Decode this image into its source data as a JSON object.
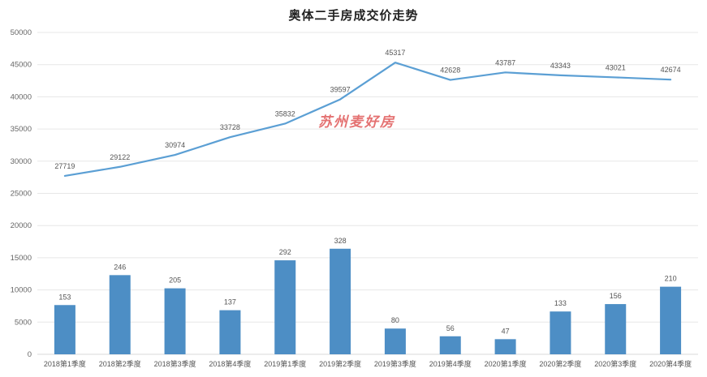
{
  "chart_data": {
    "type": "combo",
    "title": "奥体二手房成交价走势",
    "categories": [
      "2018第1季度",
      "2018第2季度",
      "2018第3季度",
      "2018第4季度",
      "2019第1季度",
      "2019第2季度",
      "2019第3季度",
      "2019第4季度",
      "2020第1季度",
      "2020第2季度",
      "2020第3季度",
      "2020第4季度"
    ],
    "series": [
      {
        "type": "line",
        "role": "price",
        "color": "#5b9fd4",
        "values": [
          27719,
          29122,
          30974,
          33728,
          35832,
          39597,
          45317,
          42628,
          43787,
          43343,
          43021,
          42674
        ]
      },
      {
        "type": "bar",
        "role": "volume",
        "color": "#4d8ec5",
        "value_scale": 50,
        "values": [
          153,
          246,
          205,
          137,
          292,
          328,
          80,
          56,
          47,
          133,
          156,
          210
        ]
      }
    ],
    "ylim": [
      0,
      50000
    ],
    "ytick_step": 5000,
    "grid": true,
    "legend": "none"
  },
  "watermark": {
    "text": "苏州麦好房",
    "color": "#e05a5a"
  },
  "colors": {
    "grid": "#e7e7e7",
    "axis": "#d9d9d9",
    "title": "#222222"
  }
}
